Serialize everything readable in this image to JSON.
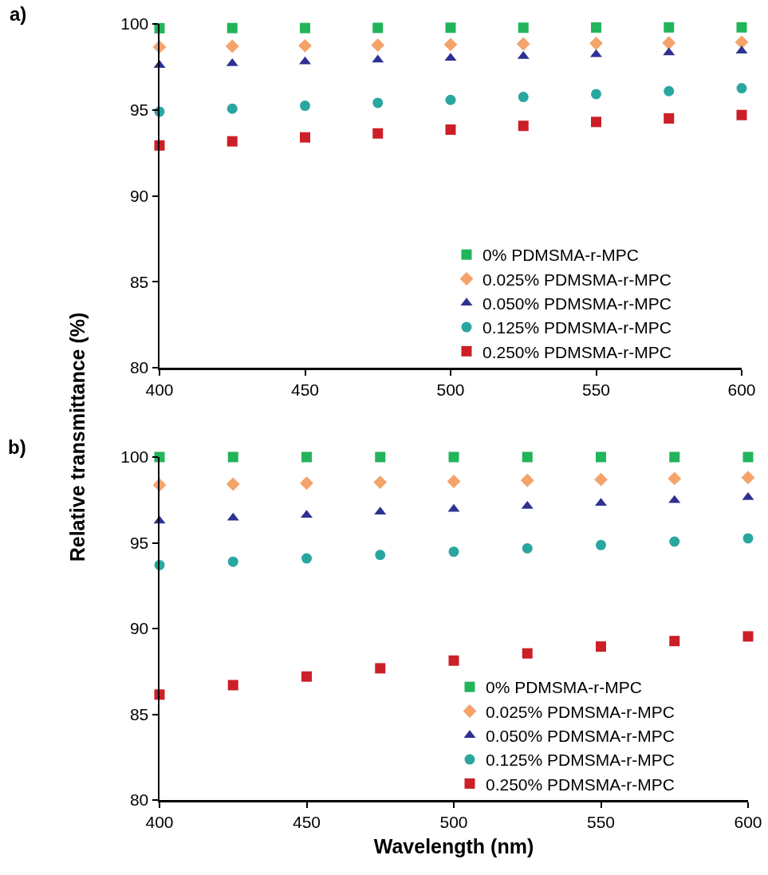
{
  "chart_data": [
    {
      "type": "scatter",
      "annotations": [
        "a)"
      ],
      "ylabel": "Relative transmittance (%)",
      "x": [
        400,
        425,
        450,
        475,
        500,
        525,
        550,
        575,
        600
      ],
      "xlim": [
        400,
        600
      ],
      "xticks": [
        400,
        450,
        500,
        550,
        600
      ],
      "ylim": [
        80,
        100
      ],
      "yticks": [
        80,
        85,
        90,
        95,
        100
      ],
      "grid": false,
      "legend": "bottom right",
      "series": [
        {
          "name": "0% PDMSMA-r-MPC",
          "color": "#22b45a",
          "marker": "square",
          "values": [
            99.75,
            99.76,
            99.76,
            99.77,
            99.78,
            99.78,
            99.79,
            99.8,
            99.8
          ]
        },
        {
          "name": "0.025% PDMSMA-r-MPC",
          "color": "#f4a36b",
          "marker": "diamond",
          "values": [
            98.66,
            98.7,
            98.73,
            98.77,
            98.8,
            98.84,
            98.87,
            98.9,
            98.94
          ]
        },
        {
          "name": "0.050% PDMSMA-r-MPC",
          "color": "#2e3192",
          "marker": "triangle",
          "values": [
            97.6,
            97.7,
            97.81,
            97.91,
            98.02,
            98.12,
            98.22,
            98.33,
            98.43
          ]
        },
        {
          "name": "0.125% PDMSMA-r-MPC",
          "color": "#2aa6a0",
          "marker": "circle",
          "values": [
            94.9,
            95.07,
            95.24,
            95.41,
            95.58,
            95.75,
            95.92,
            96.09,
            96.26
          ]
        },
        {
          "name": "0.250% PDMSMA-r-MPC",
          "color": "#cc1f27",
          "marker": "square",
          "values": [
            92.93,
            93.17,
            93.4,
            93.63,
            93.85,
            94.07,
            94.3,
            94.5,
            94.7
          ]
        }
      ]
    },
    {
      "type": "scatter",
      "annotations": [
        "b)"
      ],
      "xlabel": "Wavelength (nm)",
      "x": [
        400,
        425,
        450,
        475,
        500,
        525,
        550,
        575,
        600
      ],
      "xlim": [
        400,
        600
      ],
      "xticks": [
        400,
        450,
        500,
        550,
        600
      ],
      "ylim": [
        80,
        100
      ],
      "yticks": [
        80,
        85,
        90,
        95,
        100
      ],
      "grid": false,
      "legend": "bottom right",
      "series": [
        {
          "name": "0% PDMSMA-r-MPC",
          "color": "#22b45a",
          "marker": "square",
          "values": [
            100,
            100,
            100,
            100,
            100,
            100,
            100,
            100,
            100
          ]
        },
        {
          "name": "0.025% PDMSMA-r-MPC",
          "color": "#f4a36b",
          "marker": "diamond",
          "values": [
            98.37,
            98.42,
            98.48,
            98.53,
            98.58,
            98.64,
            98.69,
            98.75,
            98.8
          ]
        },
        {
          "name": "0.050% PDMSMA-r-MPC",
          "color": "#2e3192",
          "marker": "triangle",
          "values": [
            96.28,
            96.45,
            96.62,
            96.8,
            96.97,
            97.14,
            97.31,
            97.48,
            97.65
          ]
        },
        {
          "name": "0.125% PDMSMA-r-MPC",
          "color": "#2aa6a0",
          "marker": "circle",
          "values": [
            93.7,
            93.9,
            94.09,
            94.29,
            94.48,
            94.68,
            94.87,
            95.07,
            95.26
          ]
        },
        {
          "name": "0.250% PDMSMA-r-MPC",
          "color": "#cc1f27",
          "marker": "square",
          "values": [
            86.15,
            86.7,
            87.2,
            87.68,
            88.13,
            88.55,
            88.95,
            89.27,
            89.54
          ]
        }
      ]
    }
  ]
}
